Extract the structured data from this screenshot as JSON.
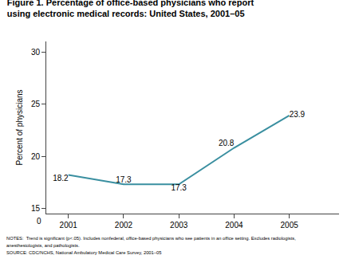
{
  "chart_data": {
    "type": "line",
    "title": "Figure 1. Percentage of office-based physicians who report\nusing electronic medical records: United States, 2001–05",
    "ylabel": "Percent of physicians",
    "x": [
      2001,
      2002,
      2003,
      2004,
      2005
    ],
    "values": [
      18.2,
      17.3,
      17.3,
      20.8,
      23.9
    ],
    "color": "#3A8FA0",
    "xlim": [
      2000.6,
      2005.9
    ],
    "xticks": [
      2001,
      2002,
      2003,
      2004,
      2005
    ],
    "ylim": [
      14.5,
      31.0
    ],
    "yticks": [
      15,
      20,
      25,
      30
    ],
    "grid": false,
    "data_labels": true,
    "annotations": [
      "0"
    ],
    "notes": [
      "NOTES:  Trend is significant (p<.05). Includes nonfederal, office-based physicians who see patients in an office setting. Excludes radiologists,",
      "anesthesiologists, and pathologists.",
      "SOURCE: CDC/NCHS, National Ambulatory Medical Care Survey, 2001–05"
    ]
  }
}
